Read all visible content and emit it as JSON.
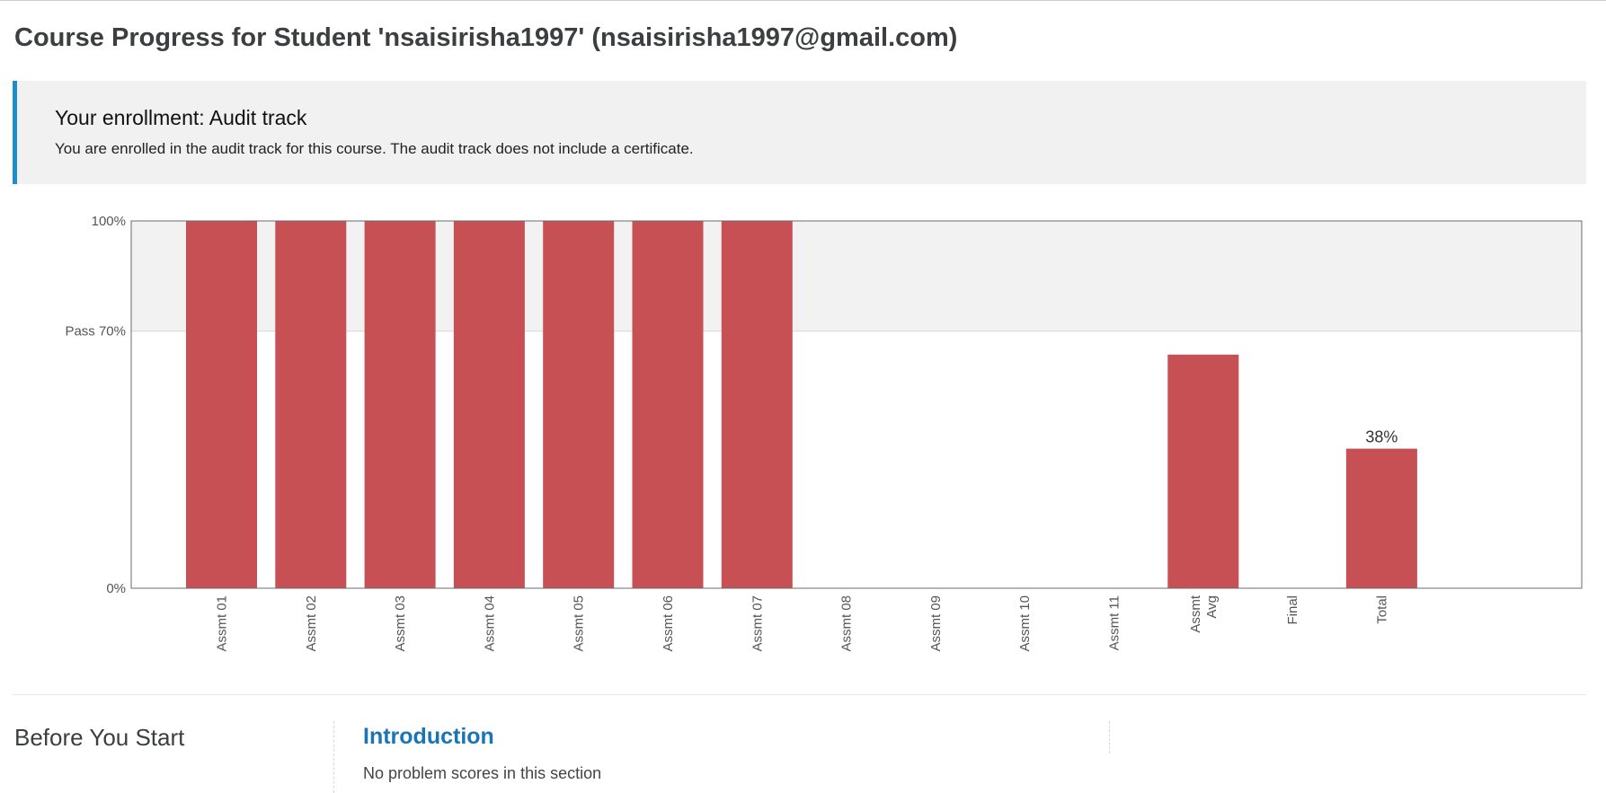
{
  "page": {
    "title": "Course Progress for Student 'nsaisirisha1997' (nsaisirisha1997@gmail.com)"
  },
  "enrollment": {
    "title": "Your enrollment: Audit track",
    "message": "You are enrolled in the audit track for this course. The audit track does not include a certificate."
  },
  "colors": {
    "bar": "#c44a4d",
    "pass_band": "#f2f2f2",
    "accent_border": "#1f8dc6",
    "link": "#1a75b4"
  },
  "chart_data": {
    "type": "bar",
    "categories": [
      "Assmt 01",
      "Assmt 02",
      "Assmt 03",
      "Assmt 04",
      "Assmt 05",
      "Assmt 06",
      "Assmt 07",
      "Assmt 08",
      "Assmt 09",
      "Assmt 10",
      "Assmt 11",
      "Assmt Avg",
      "Final",
      "Total"
    ],
    "values": [
      100,
      100,
      100,
      100,
      100,
      100,
      100,
      0,
      0,
      0,
      0,
      63.6,
      0,
      38
    ],
    "ylim": [
      0,
      100
    ],
    "pass_threshold": 70,
    "y_ticks": [
      {
        "value": 100,
        "label": "100%"
      },
      {
        "value": 70,
        "label": "Pass 70%"
      },
      {
        "value": 0,
        "label": "0%"
      }
    ],
    "value_labels": [
      {
        "category": "Total",
        "label": "38%"
      }
    ],
    "legend": "none",
    "grid": false
  },
  "chapter": {
    "title": "Before You Start",
    "section": {
      "title": "Introduction",
      "scores_text": "No problem scores in this section"
    }
  }
}
